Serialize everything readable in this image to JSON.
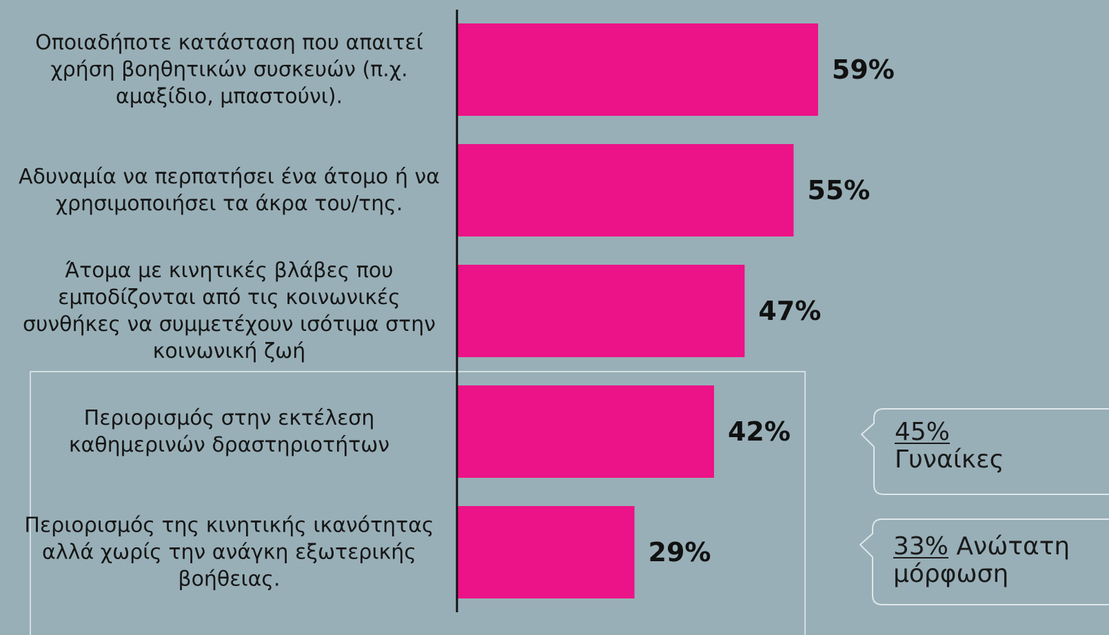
{
  "chart_data": {
    "type": "bar",
    "orientation": "horizontal",
    "categories": [
      "Οποιαδήποτε κατάσταση που απαιτεί χρήση βοηθητικών συσκευών (π.χ. αμαξίδιο, μπαστούνι).",
      "Αδυναμία να περπατήσει ένα άτομο ή να χρησιμοποιήσει τα άκρα του/της.",
      "Άτομα με κινητικές  βλάβες που εμποδίζονται από τις κοινωνικές συνθήκες να συμμετέχουν ισότιμα στην κοινωνική ζωή",
      "Περιορισμός στην εκτέλεση καθημερινών δραστηριοτήτων",
      "Περιορισμός της κινητικής ικανότητας αλλά χωρίς την ανάγκη εξωτερικής βοήθειας."
    ],
    "values": [
      59,
      55,
      47,
      42,
      29
    ],
    "value_labels": [
      "59%",
      "55%",
      "47%",
      "42%",
      "29%"
    ],
    "color": "#ec1287",
    "annotations": [
      {
        "highlight": "45%",
        "text": "Γυναίκες"
      },
      {
        "highlight": "33%",
        "text": "Ανώτατη μόρφωση"
      }
    ]
  }
}
